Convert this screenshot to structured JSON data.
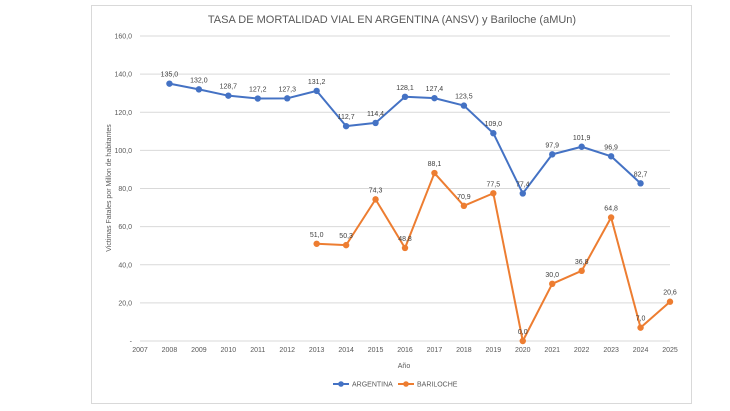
{
  "chart_data": {
    "type": "line",
    "title": "TASA DE MORTALIDAD VIAL EN ARGENTINA (ANSV) y Bariloche (aMUn)",
    "xlabel": "Año",
    "ylabel": "Victimas Fatales por Millon de habitantes",
    "x": [
      "2007",
      "2008",
      "2009",
      "2010",
      "2011",
      "2012",
      "2013",
      "2014",
      "2015",
      "2016",
      "2017",
      "2018",
      "2019",
      "2020",
      "2021",
      "2022",
      "2023",
      "2024",
      "2025"
    ],
    "ylim": [
      0,
      160
    ],
    "y_ticks": [
      "-",
      "20,0",
      "40,0",
      "60,0",
      "80,0",
      "100,0",
      "120,0",
      "140,0",
      "160,0"
    ],
    "grid": true,
    "legend_position": "bottom",
    "series": [
      {
        "name": "ARGENTINA",
        "color": "#4472c4",
        "values": [
          null,
          135.0,
          132.0,
          128.7,
          127.2,
          127.3,
          131.2,
          112.7,
          114.4,
          128.1,
          127.4,
          123.5,
          109.0,
          77.4,
          97.9,
          101.9,
          96.9,
          82.7,
          null
        ],
        "labels": [
          null,
          "135,0",
          "132,0",
          "128,7",
          "127,2",
          "127,3",
          "131,2",
          "112,7",
          "114,4",
          "128,1",
          "127,4",
          "123,5",
          "109,0",
          "77,4",
          "97,9",
          "101,9",
          "96,9",
          "82,7",
          null
        ]
      },
      {
        "name": "BARILOCHE",
        "color": "#ed7d31",
        "values": [
          null,
          null,
          null,
          null,
          null,
          null,
          51.0,
          50.3,
          74.3,
          48.8,
          88.1,
          70.9,
          77.5,
          0.0,
          30.0,
          36.8,
          64.8,
          7.0,
          20.6
        ],
        "labels": [
          null,
          null,
          null,
          null,
          null,
          null,
          "51,0",
          "50,3",
          "74,3",
          "48,8",
          "88,1",
          "70,9",
          "77,5",
          "0,0",
          "30,0",
          "36,8",
          "64,8",
          "7,0",
          "20,6"
        ]
      }
    ]
  }
}
